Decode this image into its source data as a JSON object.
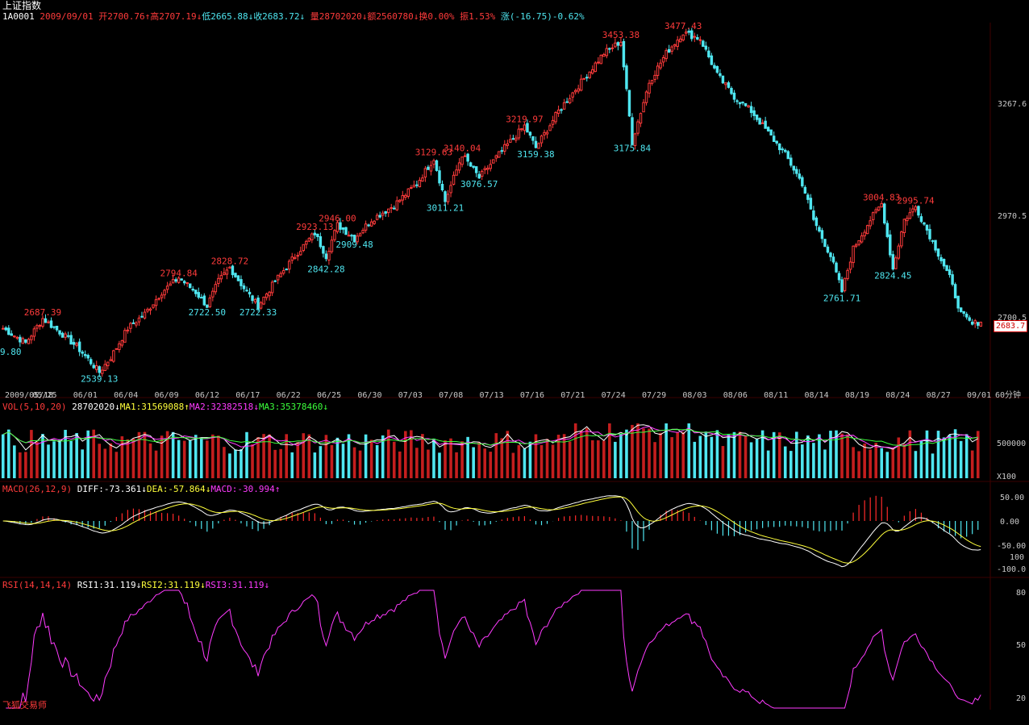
{
  "title": "上证指数",
  "header": {
    "code": "1A0001",
    "date": "2009/09/01",
    "open": "开2700.76",
    "high": "高2707.19",
    "low": "低2665.88",
    "close": "收2683.72",
    "volume": "量28702020",
    "amount": "额2560780",
    "turnover": "换0.00%",
    "amplitude": "振1.53%",
    "change": "涨(-16.75)-0.62%"
  },
  "arrows": {
    "up": "↑",
    "down": "↓"
  },
  "colors": {
    "up": "#ff3b3b",
    "down": "#4fe6f0",
    "bg": "#000000",
    "ma1": "#ffffff",
    "ma2": "#ff3bff",
    "ma3": "#3bff3b"
  },
  "price_axis": {
    "ticks": [
      "3267.6",
      "2970.5",
      "2700.5"
    ],
    "current": "2683.7"
  },
  "date_axis": {
    "labels": [
      "2009/05/18",
      "05/25",
      "06/01",
      "06/04",
      "06/09",
      "06/12",
      "06/17",
      "06/22",
      "06/25",
      "06/30",
      "07/03",
      "07/08",
      "07/13",
      "07/16",
      "07/21",
      "07/24",
      "07/29",
      "08/03",
      "08/06",
      "08/11",
      "08/14",
      "08/19",
      "08/24",
      "08/27",
      "09/01"
    ],
    "period": "60分钟"
  },
  "volume_panel": {
    "name": "VOL(5,10,20)",
    "value": "28702020",
    "ma1": "MA1:31569088",
    "ma2": "MA2:32382518",
    "ma3": "MA3:35378460",
    "axis_top": "500000",
    "axis_unit": "X100"
  },
  "macd_panel": {
    "name": "MACD(26,12,9)",
    "diff": "DIFF:-73.361",
    "dea": "DEA:-57.864",
    "macd": "MACD:-30.994",
    "ticks": [
      "50.00",
      "0.00",
      "-50.00",
      "100",
      "-100.0"
    ]
  },
  "rsi_panel": {
    "name": "RSI(14,14,14)",
    "rsi1": "RSI1:31.119",
    "rsi2": "RSI2:31.119",
    "rsi3": "RSI3:31.119",
    "ticks": [
      "80",
      "50",
      "20"
    ]
  },
  "footer_brand": "飞狐交易师",
  "chart_data": {
    "type": "candlestick",
    "series_name": "上证指数",
    "x_start": "2009/05/18",
    "x_end": "2009/09/01",
    "ylim": [
      2520,
      3500
    ],
    "peak_labels": [
      {
        "value": 2687.39,
        "kind": "high"
      },
      {
        "value": 2539.13,
        "kind": "low"
      },
      {
        "value": 2828.72,
        "kind": "high"
      },
      {
        "value": 2794.84,
        "kind": "high"
      },
      {
        "value": 2722.5,
        "kind": "low"
      },
      {
        "value": 2722.33,
        "kind": "low"
      },
      {
        "value": 2923.13,
        "kind": "high"
      },
      {
        "value": 2946.0,
        "kind": "high"
      },
      {
        "value": 2842.28,
        "kind": "low"
      },
      {
        "value": 2909.48,
        "kind": "low"
      },
      {
        "value": 3129.63,
        "kind": "high"
      },
      {
        "value": 3011.21,
        "kind": "low"
      },
      {
        "value": 3140.04,
        "kind": "high"
      },
      {
        "value": 3076.57,
        "kind": "low"
      },
      {
        "value": 3219.97,
        "kind": "high"
      },
      {
        "value": 3159.38,
        "kind": "low"
      },
      {
        "value": 3453.38,
        "kind": "high"
      },
      {
        "value": 3175.84,
        "kind": "low"
      },
      {
        "value": 3477.43,
        "kind": "high"
      },
      {
        "value": 2761.71,
        "kind": "low"
      },
      {
        "value": 3004.83,
        "kind": "high"
      },
      {
        "value": 2995.74,
        "kind": "high"
      },
      {
        "value": 2824.45,
        "kind": "low"
      }
    ],
    "partial_left_label": "9.80",
    "path_points": [
      [
        0,
        2660
      ],
      [
        8,
        2620
      ],
      [
        14,
        2687
      ],
      [
        20,
        2650
      ],
      [
        26,
        2610
      ],
      [
        30,
        2575
      ],
      [
        34,
        2539
      ],
      [
        38,
        2580
      ],
      [
        44,
        2660
      ],
      [
        50,
        2700
      ],
      [
        56,
        2760
      ],
      [
        62,
        2800
      ],
      [
        68,
        2760
      ],
      [
        72,
        2722
      ],
      [
        76,
        2790
      ],
      [
        80,
        2828
      ],
      [
        86,
        2760
      ],
      [
        90,
        2722
      ],
      [
        96,
        2790
      ],
      [
        104,
        2870
      ],
      [
        110,
        2923
      ],
      [
        114,
        2860
      ],
      [
        118,
        2946
      ],
      [
        124,
        2909
      ],
      [
        130,
        2960
      ],
      [
        138,
        3000
      ],
      [
        146,
        3060
      ],
      [
        152,
        3129
      ],
      [
        156,
        3011
      ],
      [
        162,
        3140
      ],
      [
        168,
        3076
      ],
      [
        176,
        3150
      ],
      [
        184,
        3219
      ],
      [
        188,
        3159
      ],
      [
        196,
        3260
      ],
      [
        204,
        3340
      ],
      [
        212,
        3420
      ],
      [
        218,
        3453
      ],
      [
        222,
        3176
      ],
      [
        228,
        3340
      ],
      [
        234,
        3420
      ],
      [
        240,
        3477
      ],
      [
        246,
        3460
      ],
      [
        252,
        3360
      ],
      [
        258,
        3300
      ],
      [
        264,
        3260
      ],
      [
        270,
        3200
      ],
      [
        276,
        3140
      ],
      [
        282,
        3060
      ],
      [
        286,
        2960
      ],
      [
        292,
        2860
      ],
      [
        296,
        2762
      ],
      [
        300,
        2880
      ],
      [
        306,
        2960
      ],
      [
        310,
        3004
      ],
      [
        314,
        2824
      ],
      [
        318,
        2960
      ],
      [
        322,
        2996
      ],
      [
        328,
        2900
      ],
      [
        334,
        2800
      ],
      [
        338,
        2700
      ],
      [
        342,
        2670
      ],
      [
        346,
        2684
      ]
    ],
    "volume_ref": 500000,
    "macd_range": [
      -110,
      60
    ],
    "rsi_range": [
      15,
      85
    ]
  }
}
